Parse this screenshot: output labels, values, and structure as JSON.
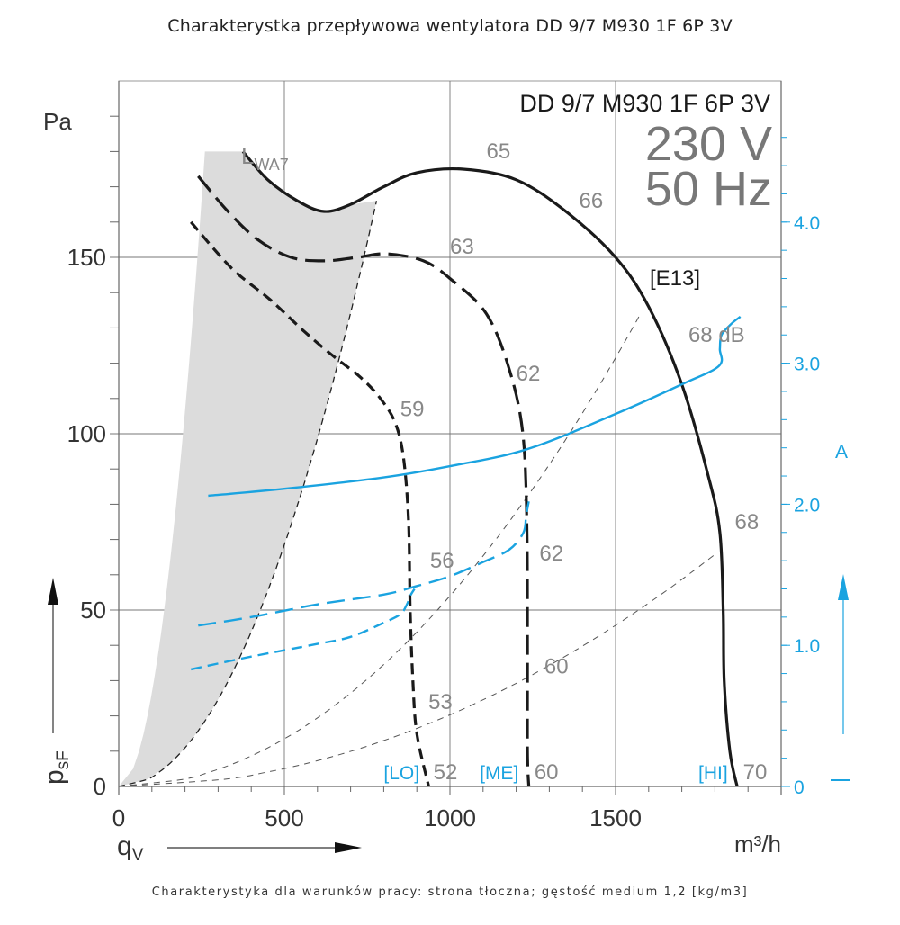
{
  "page": {
    "title": "Charakterystka przepływowa wentylatora DD 9/7 M930 1F 6P 3V",
    "footnote": "Charakterystyka dla warunków pracy: strona tłoczna; gęstość medium 1,2 [kg/m3]"
  },
  "chart_data": {
    "type": "line",
    "title": "DD 9/7 M930 1F 6P 3V",
    "subtitle_voltage": "230 V",
    "subtitle_frequency": "50 Hz",
    "model_code": "[E13]",
    "xlabel": "q",
    "xlabel_sub": "V",
    "xunit": "m³/h",
    "ylabel": "p",
    "ylabel_sub": "sF",
    "yunit": "Pa",
    "y2unit": "A",
    "xlim": [
      0,
      2000
    ],
    "ylim": [
      0,
      200
    ],
    "y2lim": [
      0,
      5.0
    ],
    "grid": true,
    "x_ticks": [
      0,
      500,
      1000,
      1500
    ],
    "x_tick_labels": [
      "0",
      "500",
      "1000",
      "1500"
    ],
    "y_ticks": [
      0,
      50,
      100,
      150
    ],
    "y_tick_labels": [
      "0",
      "50",
      "100",
      "150"
    ],
    "y2_ticks": [
      0,
      1.0,
      2.0,
      3.0,
      4.0
    ],
    "y2_tick_labels": [
      "0",
      "1.0",
      "2.0",
      "3.0",
      "4.0"
    ],
    "lwa_label": "L",
    "lwa_label_sub": "WA7",
    "colors": {
      "pressure": "#1a1a1a",
      "current": "#1aa3e0",
      "shade": "#dcdcdc",
      "grid": "#777777",
      "label": "#888888"
    },
    "pressure_series": [
      {
        "name": "HI",
        "speed_label": "[HI]",
        "style": "solid",
        "points": [
          [
            375,
            180
          ],
          [
            450,
            172
          ],
          [
            540,
            166
          ],
          [
            620,
            163
          ],
          [
            700,
            165
          ],
          [
            800,
            170
          ],
          [
            900,
            174
          ],
          [
            1040,
            175
          ],
          [
            1200,
            172
          ],
          [
            1350,
            163
          ],
          [
            1500,
            150
          ],
          [
            1600,
            136
          ],
          [
            1700,
            114
          ],
          [
            1780,
            88
          ],
          [
            1815,
            72
          ],
          [
            1825,
            50
          ],
          [
            1828,
            30
          ],
          [
            1845,
            10
          ],
          [
            1867,
            0
          ]
        ]
      },
      {
        "name": "ME",
        "speed_label": "[ME]",
        "style": "dash-long",
        "points": [
          [
            240,
            173
          ],
          [
            330,
            163
          ],
          [
            420,
            155
          ],
          [
            520,
            150
          ],
          [
            620,
            149
          ],
          [
            720,
            150
          ],
          [
            810,
            151
          ],
          [
            920,
            149
          ],
          [
            1000,
            144
          ],
          [
            1110,
            134
          ],
          [
            1180,
            118
          ],
          [
            1220,
            100
          ],
          [
            1232,
            75
          ],
          [
            1234,
            40
          ],
          [
            1234,
            10
          ],
          [
            1238,
            0
          ]
        ]
      },
      {
        "name": "LO",
        "speed_label": "[LO]",
        "style": "dash-short",
        "points": [
          [
            218,
            160
          ],
          [
            340,
            147
          ],
          [
            457,
            138
          ],
          [
            560,
            129
          ],
          [
            648,
            122
          ],
          [
            730,
            116
          ],
          [
            790,
            110
          ],
          [
            835,
            103
          ],
          [
            860,
            93
          ],
          [
            875,
            75
          ],
          [
            880,
            50
          ],
          [
            888,
            30
          ],
          [
            900,
            15
          ],
          [
            936,
            0
          ]
        ]
      }
    ],
    "current_series": [
      {
        "name": "HI",
        "style": "solid",
        "points": [
          [
            270,
            2.06
          ],
          [
            500,
            2.11
          ],
          [
            800,
            2.19
          ],
          [
            1000,
            2.27
          ],
          [
            1233,
            2.39
          ],
          [
            1500,
            2.64
          ],
          [
            1700,
            2.85
          ],
          [
            1812,
            2.98
          ],
          [
            1815,
            3.1
          ],
          [
            1820,
            3.2
          ],
          [
            1850,
            3.28
          ],
          [
            1877,
            3.33
          ]
        ]
      },
      {
        "name": "ME",
        "style": "dash-long",
        "points": [
          [
            240,
            1.14
          ],
          [
            400,
            1.2
          ],
          [
            600,
            1.29
          ],
          [
            800,
            1.36
          ],
          [
            900,
            1.42
          ],
          [
            1000,
            1.49
          ],
          [
            1100,
            1.59
          ],
          [
            1180,
            1.68
          ],
          [
            1222,
            1.8
          ],
          [
            1230,
            1.92
          ],
          [
            1238,
            2.02
          ]
        ]
      },
      {
        "name": "LO",
        "style": "dash-short",
        "points": [
          [
            218,
            0.83
          ],
          [
            400,
            0.92
          ],
          [
            600,
            1.01
          ],
          [
            700,
            1.06
          ],
          [
            800,
            1.16
          ],
          [
            850,
            1.22
          ],
          [
            870,
            1.29
          ],
          [
            880,
            1.35
          ],
          [
            893,
            1.4
          ]
        ]
      }
    ],
    "system_curves_k": [
      0.00266,
      0.000274,
      5.4e-05,
      2.03e-05
    ],
    "shaded_region": "between system curves k=0.00266 and k=0.000274 below HI curve",
    "annotations": [
      {
        "text": "65",
        "q": 1110,
        "p": 178
      },
      {
        "text": "66",
        "q": 1390,
        "p": 164
      },
      {
        "text": "68 dB",
        "q": 1720,
        "p": 126
      },
      {
        "text": "63",
        "q": 1000,
        "p": 151
      },
      {
        "text": "62",
        "q": 1200,
        "p": 115
      },
      {
        "text": "59",
        "q": 850,
        "p": 105
      },
      {
        "text": "56",
        "q": 940,
        "p": 62
      },
      {
        "text": "62",
        "q": 1270,
        "p": 64
      },
      {
        "text": "68",
        "q": 1860,
        "p": 73
      },
      {
        "text": "60",
        "q": 1285,
        "p": 32
      },
      {
        "text": "53",
        "q": 935,
        "p": 22
      },
      {
        "text": "52",
        "q": 950,
        "p": 2
      },
      {
        "text": "60",
        "q": 1255,
        "p": 2
      },
      {
        "text": "70",
        "q": 1885,
        "p": 2
      }
    ],
    "speed_labels": [
      {
        "text": "[LO]",
        "q": 800,
        "p": 2
      },
      {
        "text": "[ME]",
        "q": 1090,
        "p": 2
      },
      {
        "text": "[HI]",
        "q": 1750,
        "p": 2
      }
    ]
  }
}
